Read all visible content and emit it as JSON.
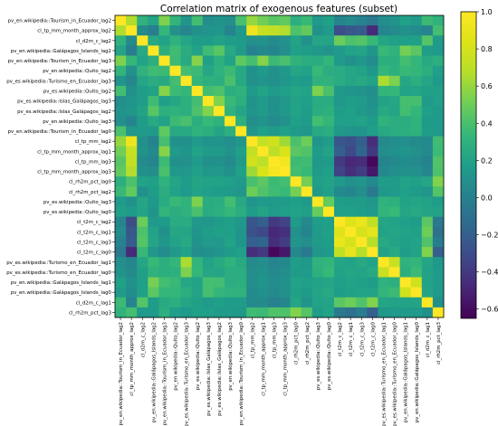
{
  "chart_data": {
    "type": "heatmap",
    "title": "Correlation matrix of exogenous features (subset)",
    "labels": [
      "pv_en.wikipedia::Tourism_in_Ecuador_lag2",
      "cl_tp_mm_month_approx_lag2",
      "cl_d2m_c_lag2",
      "pv_en.wikipedia::Galápagos_Islands_lag2",
      "pv_en.wikipedia::Tourism_in_Ecuador_lag3",
      "pv_en.wikipedia::Quito_lag2",
      "pv_es.wikipedia::Turismo_en_Ecuador_lag3",
      "pv_es.wikipedia::Quito_lag2",
      "pv_es.wikipedia::Islas_Galápagos_lag3",
      "pv_es.wikipedia::Islas_Galápagos_lag2",
      "pv_en.wikipedia::Quito_lag3",
      "pv_en.wikipedia::Tourism_in_Ecuador_lag0",
      "cl_tp_mm_lag2",
      "cl_tp_mm_month_approx_lag1",
      "cl_tp_mm_lag3",
      "cl_tp_mm_month_approx_lag3",
      "cl_rh2m_pct_lag0",
      "cl_rh2m_pct_lag2",
      "pv_es.wikipedia::Quito_lag3",
      "pv_es.wikipedia::Quito_lag0",
      "cl_t2m_c_lag2",
      "cl_t2m_c_lag1",
      "cl_t2m_c_lag3",
      "cl_t2m_c_lag0",
      "pv_es.wikipedia::Turismo_en_Ecuador_lag1",
      "pv_es.wikipedia::Turismo_en_Ecuador_lag0",
      "pv_en.wikipedia::Galápagos_Islands_lag1",
      "pv_en.wikipedia::Galápagos_Islands_lag0",
      "cl_d2m_c_lag1",
      "cl_rh2m_pct_lag3"
    ],
    "colorbar": {
      "colormap": "viridis",
      "range": [
        -0.65,
        1.0
      ],
      "ticks": [
        "1.0",
        "0.8",
        "0.6",
        "0.4",
        "0.2",
        "0.0",
        "−0.2",
        "−0.4",
        "−0.6"
      ],
      "tick_values": [
        1.0,
        0.8,
        0.6,
        0.4,
        0.2,
        0.0,
        -0.2,
        -0.4,
        -0.6
      ]
    },
    "matrix": [
      [
        1,
        0.66,
        0.3,
        0.21,
        0.54,
        0.32,
        0.12,
        0.38,
        0.08,
        0.11,
        0.09,
        0.4,
        0.6,
        0.51,
        0.44,
        0.47,
        0.28,
        0.35,
        0.15,
        0.19,
        0.03,
        0.06,
        0.01,
        -0.05,
        0.08,
        0.11,
        0.19,
        0.16,
        0.36,
        0.3
      ],
      [
        0.66,
        1,
        0.06,
        -0.02,
        0.33,
        0.09,
        0.04,
        0.1,
        0.12,
        0.13,
        0.02,
        0.14,
        0.93,
        0.75,
        0.72,
        0.66,
        0.41,
        0.47,
        0.1,
        0.16,
        -0.3,
        -0.24,
        -0.22,
        -0.47,
        0.04,
        0.06,
        0.1,
        0.07,
        0.02,
        0.38
      ],
      [
        0.3,
        0.06,
        1,
        0.24,
        0.2,
        0.3,
        0.22,
        0.17,
        0.17,
        0.2,
        0.17,
        0.16,
        0.1,
        0.11,
        0.06,
        0.1,
        0.2,
        0.1,
        0.22,
        0.21,
        0.49,
        0.41,
        0.43,
        0.35,
        0.22,
        0.19,
        0.18,
        0.19,
        0.43,
        0.15
      ],
      [
        0.21,
        -0.02,
        0.24,
        1,
        0.28,
        0.37,
        0.27,
        0.2,
        0.37,
        0.44,
        0.24,
        0.16,
        0.01,
        0.05,
        0.03,
        0.08,
        0.19,
        0.17,
        0.14,
        0.12,
        0.15,
        0.2,
        0.22,
        0.13,
        0.35,
        0.3,
        0.52,
        0.45,
        0.17,
        0.15
      ],
      [
        0.54,
        0.33,
        0.2,
        0.28,
        1,
        0.36,
        0.25,
        0.56,
        0.18,
        0.29,
        0.2,
        0.46,
        0.39,
        0.56,
        0.36,
        0.4,
        0.31,
        0.27,
        0.26,
        0.32,
        0.15,
        0.1,
        0.13,
        0.07,
        0.28,
        0.28,
        0.38,
        0.33,
        0.25,
        0.28
      ],
      [
        0.32,
        0.09,
        0.3,
        0.37,
        0.36,
        1,
        0.38,
        0.36,
        0.23,
        0.3,
        0.36,
        0.24,
        0.1,
        0.15,
        0.1,
        0.14,
        0.22,
        0.2,
        0.35,
        0.27,
        0.26,
        0.23,
        0.2,
        0.14,
        0.33,
        0.29,
        0.35,
        0.33,
        0.28,
        0.18
      ],
      [
        0.12,
        0.04,
        0.22,
        0.27,
        0.25,
        0.38,
        1,
        0.33,
        0.29,
        0.28,
        0.4,
        0.24,
        0.1,
        0.12,
        0.09,
        0.13,
        0.17,
        0.15,
        0.31,
        0.3,
        0.26,
        0.22,
        0.24,
        0.2,
        0.65,
        0.54,
        0.23,
        0.28,
        0.22,
        0.15
      ],
      [
        0.38,
        0.1,
        0.17,
        0.2,
        0.56,
        0.36,
        0.33,
        1,
        0.38,
        0.41,
        0.28,
        0.31,
        0.15,
        0.2,
        0.15,
        0.18,
        0.22,
        0.2,
        0.54,
        0.4,
        0.14,
        0.12,
        0.11,
        0.08,
        0.32,
        0.33,
        0.2,
        0.21,
        0.19,
        0.19
      ],
      [
        0.08,
        0.12,
        0.17,
        0.37,
        0.18,
        0.23,
        0.29,
        0.38,
        1,
        0.55,
        0.35,
        0.28,
        0.11,
        0.15,
        0.1,
        0.13,
        0.2,
        0.18,
        0.26,
        0.26,
        0.13,
        0.17,
        0.15,
        0.1,
        0.2,
        0.23,
        0.39,
        0.39,
        0.15,
        0.18
      ],
      [
        0.11,
        0.13,
        0.2,
        0.44,
        0.29,
        0.3,
        0.28,
        0.41,
        0.55,
        1,
        0.31,
        0.22,
        0.12,
        0.16,
        0.1,
        0.14,
        0.2,
        0.17,
        0.27,
        0.29,
        0.17,
        0.19,
        0.14,
        0.12,
        0.25,
        0.22,
        0.38,
        0.33,
        0.18,
        0.16
      ],
      [
        0.09,
        0.02,
        0.17,
        0.24,
        0.2,
        0.36,
        0.4,
        0.28,
        0.35,
        0.31,
        1,
        0.29,
        0.08,
        0.11,
        0.06,
        0.1,
        0.18,
        0.16,
        0.38,
        0.33,
        0.18,
        0.18,
        0.2,
        0.16,
        0.31,
        0.27,
        0.27,
        0.31,
        0.16,
        0.15
      ],
      [
        0.4,
        0.14,
        0.16,
        0.16,
        0.46,
        0.24,
        0.24,
        0.31,
        0.28,
        0.22,
        0.29,
        1,
        0.13,
        0.18,
        0.16,
        0.19,
        0.15,
        0.13,
        0.24,
        0.27,
        0.14,
        0.12,
        0.12,
        0.18,
        0.25,
        0.27,
        0.28,
        0.3,
        0.17,
        0.14
      ],
      [
        0.6,
        0.93,
        0.1,
        0.01,
        0.39,
        0.1,
        0.1,
        0.15,
        0.11,
        0.12,
        0.08,
        0.13,
        1,
        0.73,
        0.78,
        0.62,
        0.4,
        0.5,
        0.12,
        0.17,
        -0.25,
        -0.28,
        -0.2,
        -0.45,
        0.06,
        0.08,
        0.08,
        0.06,
        0.05,
        0.37
      ],
      [
        0.51,
        0.75,
        0.11,
        0.05,
        0.56,
        0.15,
        0.12,
        0.2,
        0.15,
        0.16,
        0.11,
        0.18,
        0.73,
        1,
        0.7,
        0.82,
        0.45,
        0.42,
        0.15,
        0.21,
        -0.2,
        -0.32,
        -0.17,
        -0.4,
        0.08,
        0.1,
        0.12,
        0.1,
        0.06,
        0.36
      ],
      [
        0.44,
        0.72,
        0.06,
        0.03,
        0.36,
        0.1,
        0.09,
        0.15,
        0.1,
        0.1,
        0.06,
        0.16,
        0.78,
        0.7,
        1,
        0.95,
        0.36,
        0.37,
        0.14,
        0.16,
        -0.4,
        -0.48,
        -0.45,
        -0.62,
        0.02,
        0.05,
        0.07,
        0.06,
        0.01,
        0.42
      ],
      [
        0.47,
        0.66,
        0.1,
        0.08,
        0.4,
        0.14,
        0.13,
        0.18,
        0.13,
        0.14,
        0.1,
        0.19,
        0.62,
        0.82,
        0.95,
        1,
        0.38,
        0.35,
        0.16,
        0.18,
        -0.35,
        -0.44,
        -0.38,
        -0.55,
        0.05,
        0.08,
        0.1,
        0.09,
        0.04,
        0.41
      ],
      [
        0.28,
        0.41,
        0.2,
        0.19,
        0.31,
        0.22,
        0.17,
        0.22,
        0.2,
        0.2,
        0.18,
        0.15,
        0.4,
        0.45,
        0.36,
        0.38,
        1,
        0.52,
        0.18,
        0.2,
        0.15,
        0.1,
        0.12,
        0.05,
        0.17,
        0.16,
        0.2,
        0.19,
        0.22,
        0.55
      ],
      [
        0.35,
        0.47,
        0.1,
        0.17,
        0.27,
        0.2,
        0.15,
        0.2,
        0.18,
        0.17,
        0.16,
        0.13,
        0.5,
        0.42,
        0.37,
        0.35,
        0.52,
        1,
        0.16,
        0.19,
        0.05,
        0.03,
        0.08,
        -0.05,
        0.14,
        0.15,
        0.18,
        0.16,
        0.12,
        0.43
      ],
      [
        0.15,
        0.1,
        0.22,
        0.14,
        0.26,
        0.35,
        0.31,
        0.54,
        0.26,
        0.27,
        0.38,
        0.24,
        0.12,
        0.15,
        0.14,
        0.16,
        0.18,
        0.16,
        1,
        0.48,
        0.17,
        0.16,
        0.16,
        0.13,
        0.3,
        0.29,
        0.2,
        0.22,
        0.2,
        0.17
      ],
      [
        0.19,
        0.16,
        0.21,
        0.12,
        0.32,
        0.27,
        0.3,
        0.4,
        0.26,
        0.29,
        0.33,
        0.27,
        0.17,
        0.21,
        0.16,
        0.18,
        0.2,
        0.19,
        0.48,
        1,
        0.18,
        0.19,
        0.17,
        0.15,
        0.32,
        0.35,
        0.22,
        0.24,
        0.21,
        0.2
      ],
      [
        0.03,
        -0.3,
        0.49,
        0.15,
        0.15,
        0.26,
        0.26,
        0.14,
        0.13,
        0.17,
        0.18,
        0.14,
        -0.25,
        -0.2,
        -0.4,
        -0.35,
        0.15,
        0.05,
        0.17,
        0.18,
        1,
        0.85,
        0.9,
        0.72,
        0.22,
        0.2,
        0.18,
        0.17,
        0.45,
        -0.05
      ],
      [
        0.06,
        -0.24,
        0.41,
        0.2,
        0.1,
        0.23,
        0.22,
        0.12,
        0.17,
        0.19,
        0.18,
        0.12,
        -0.28,
        -0.32,
        -0.48,
        -0.44,
        0.1,
        0.03,
        0.16,
        0.19,
        0.85,
        1,
        0.8,
        0.88,
        0.2,
        0.22,
        0.2,
        0.19,
        0.5,
        -0.1
      ],
      [
        0.01,
        -0.22,
        0.43,
        0.22,
        0.13,
        0.2,
        0.24,
        0.11,
        0.15,
        0.14,
        0.2,
        0.12,
        -0.2,
        -0.17,
        -0.45,
        -0.38,
        0.12,
        0.08,
        0.16,
        0.17,
        0.9,
        0.8,
        1,
        0.68,
        0.24,
        0.21,
        0.19,
        0.2,
        0.42,
        -0.02
      ],
      [
        -0.05,
        -0.47,
        0.35,
        0.13,
        0.07,
        0.14,
        0.2,
        0.08,
        0.1,
        0.12,
        0.16,
        0.18,
        -0.45,
        -0.4,
        -0.62,
        -0.55,
        0.05,
        -0.05,
        0.13,
        0.15,
        0.72,
        0.88,
        0.68,
        1,
        0.2,
        0.25,
        0.17,
        0.2,
        0.55,
        -0.2
      ],
      [
        0.08,
        0.04,
        0.22,
        0.35,
        0.28,
        0.33,
        0.65,
        0.32,
        0.2,
        0.25,
        0.31,
        0.25,
        0.06,
        0.08,
        0.02,
        0.05,
        0.17,
        0.14,
        0.3,
        0.32,
        0.22,
        0.2,
        0.24,
        0.2,
        1,
        0.75,
        0.3,
        0.32,
        0.22,
        0.14
      ],
      [
        0.11,
        0.06,
        0.19,
        0.3,
        0.28,
        0.29,
        0.54,
        0.33,
        0.23,
        0.22,
        0.27,
        0.27,
        0.08,
        0.1,
        0.05,
        0.08,
        0.16,
        0.15,
        0.29,
        0.35,
        0.2,
        0.22,
        0.21,
        0.25,
        0.75,
        1,
        0.28,
        0.36,
        0.2,
        0.15
      ],
      [
        0.19,
        0.1,
        0.18,
        0.52,
        0.38,
        0.35,
        0.23,
        0.2,
        0.39,
        0.38,
        0.27,
        0.28,
        0.08,
        0.12,
        0.07,
        0.1,
        0.2,
        0.18,
        0.2,
        0.22,
        0.18,
        0.2,
        0.19,
        0.17,
        0.3,
        0.28,
        1,
        0.78,
        0.2,
        0.16
      ],
      [
        0.16,
        0.07,
        0.19,
        0.45,
        0.33,
        0.33,
        0.28,
        0.21,
        0.39,
        0.33,
        0.31,
        0.3,
        0.06,
        0.1,
        0.06,
        0.09,
        0.19,
        0.16,
        0.22,
        0.24,
        0.17,
        0.19,
        0.2,
        0.2,
        0.32,
        0.36,
        0.78,
        1,
        0.21,
        0.15
      ],
      [
        0.36,
        0.02,
        0.43,
        0.17,
        0.25,
        0.28,
        0.22,
        0.19,
        0.15,
        0.18,
        0.16,
        0.17,
        0.05,
        0.06,
        0.01,
        0.04,
        0.22,
        0.12,
        0.2,
        0.21,
        0.45,
        0.5,
        0.42,
        0.55,
        0.22,
        0.2,
        0.2,
        0.21,
        1,
        0.1
      ],
      [
        0.3,
        0.38,
        0.15,
        0.15,
        0.28,
        0.18,
        0.15,
        0.19,
        0.18,
        0.16,
        0.15,
        0.14,
        0.37,
        0.36,
        0.42,
        0.41,
        0.55,
        0.43,
        0.17,
        0.2,
        -0.05,
        -0.1,
        -0.02,
        -0.2,
        0.14,
        0.15,
        0.16,
        0.15,
        0.1,
        1
      ]
    ]
  }
}
